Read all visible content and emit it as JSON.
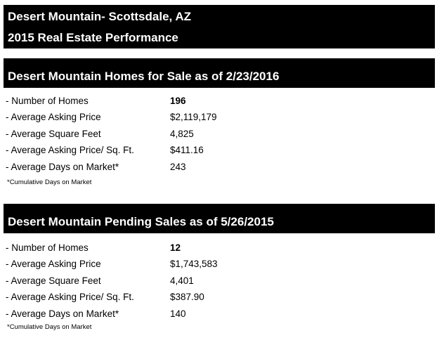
{
  "title": {
    "line1": "Desert Mountain-  Scottsdale, AZ",
    "line2": "2015 Real Estate Performance"
  },
  "sections": [
    {
      "heading": "Desert Mountain Homes for Sale as of 2/23/2016",
      "rows": [
        {
          "label": "- Number of Homes",
          "value": "196"
        },
        {
          "label": "- Average Asking Price",
          "value": "$2,119,179"
        },
        {
          "label": "- Average Square Feet",
          "value": "4,825"
        },
        {
          "label": "- Average Asking Price/ Sq. Ft.",
          "value": "$411.16"
        },
        {
          "label": "- Average Days on Market*",
          "value": "243"
        }
      ],
      "footnote": "*Cumulative Days on Market"
    },
    {
      "heading": "Desert Mountain Pending Sales as of 5/26/2015",
      "rows": [
        {
          "label": "- Number of Homes",
          "value": "12"
        },
        {
          "label": "- Average Asking Price",
          "value": "$1,743,583"
        },
        {
          "label": "- Average Square Feet",
          "value": "4,401"
        },
        {
          "label": "- Average Asking Price/ Sq. Ft.",
          "value": "$387.90"
        },
        {
          "label": "- Average Days on Market*",
          "value": "140"
        }
      ],
      "footnote": "*Cumulative Days on Market"
    }
  ]
}
